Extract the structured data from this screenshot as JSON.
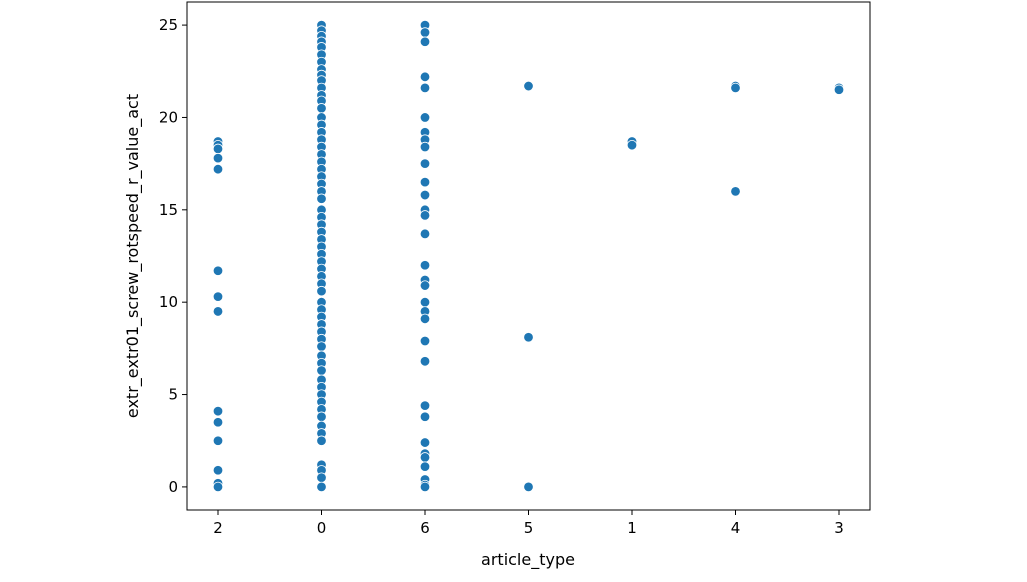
{
  "chart_data": {
    "type": "scatter",
    "title": "",
    "xlabel": "article_type",
    "ylabel": "extr_extr01_screw_rotspeed_r_value_act",
    "categories": [
      "2",
      "0",
      "6",
      "5",
      "1",
      "4",
      "3"
    ],
    "ylim": [
      -1.25,
      26.25
    ],
    "yticks": [
      0,
      5,
      10,
      15,
      20,
      25
    ],
    "grid": false,
    "legend": "none",
    "color": "#1f77b4",
    "points": [
      {
        "x": "2",
        "y": 18.7
      },
      {
        "x": "2",
        "y": 18.5
      },
      {
        "x": "2",
        "y": 18.3
      },
      {
        "x": "2",
        "y": 17.8
      },
      {
        "x": "2",
        "y": 17.2
      },
      {
        "x": "2",
        "y": 11.7
      },
      {
        "x": "2",
        "y": 10.3
      },
      {
        "x": "2",
        "y": 9.5
      },
      {
        "x": "2",
        "y": 4.1
      },
      {
        "x": "2",
        "y": 3.5
      },
      {
        "x": "2",
        "y": 2.5
      },
      {
        "x": "2",
        "y": 0.9
      },
      {
        "x": "2",
        "y": 0.2
      },
      {
        "x": "2",
        "y": 0.0
      },
      {
        "x": "0",
        "y": 25.0
      },
      {
        "x": "0",
        "y": 24.7
      },
      {
        "x": "0",
        "y": 24.4
      },
      {
        "x": "0",
        "y": 24.1
      },
      {
        "x": "0",
        "y": 23.8
      },
      {
        "x": "0",
        "y": 23.4
      },
      {
        "x": "0",
        "y": 23.0
      },
      {
        "x": "0",
        "y": 22.6
      },
      {
        "x": "0",
        "y": 22.3
      },
      {
        "x": "0",
        "y": 22.0
      },
      {
        "x": "0",
        "y": 21.6
      },
      {
        "x": "0",
        "y": 21.2
      },
      {
        "x": "0",
        "y": 20.9
      },
      {
        "x": "0",
        "y": 20.5
      },
      {
        "x": "0",
        "y": 20.0
      },
      {
        "x": "0",
        "y": 19.6
      },
      {
        "x": "0",
        "y": 19.2
      },
      {
        "x": "0",
        "y": 18.8
      },
      {
        "x": "0",
        "y": 18.4
      },
      {
        "x": "0",
        "y": 18.0
      },
      {
        "x": "0",
        "y": 17.6
      },
      {
        "x": "0",
        "y": 17.2
      },
      {
        "x": "0",
        "y": 16.8
      },
      {
        "x": "0",
        "y": 16.4
      },
      {
        "x": "0",
        "y": 16.0
      },
      {
        "x": "0",
        "y": 15.6
      },
      {
        "x": "0",
        "y": 15.0
      },
      {
        "x": "0",
        "y": 14.6
      },
      {
        "x": "0",
        "y": 14.2
      },
      {
        "x": "0",
        "y": 13.8
      },
      {
        "x": "0",
        "y": 13.4
      },
      {
        "x": "0",
        "y": 13.0
      },
      {
        "x": "0",
        "y": 12.6
      },
      {
        "x": "0",
        "y": 12.2
      },
      {
        "x": "0",
        "y": 11.8
      },
      {
        "x": "0",
        "y": 11.4
      },
      {
        "x": "0",
        "y": 11.0
      },
      {
        "x": "0",
        "y": 10.6
      },
      {
        "x": "0",
        "y": 10.0
      },
      {
        "x": "0",
        "y": 9.6
      },
      {
        "x": "0",
        "y": 9.2
      },
      {
        "x": "0",
        "y": 8.8
      },
      {
        "x": "0",
        "y": 8.4
      },
      {
        "x": "0",
        "y": 8.0
      },
      {
        "x": "0",
        "y": 7.6
      },
      {
        "x": "0",
        "y": 7.1
      },
      {
        "x": "0",
        "y": 6.7
      },
      {
        "x": "0",
        "y": 6.3
      },
      {
        "x": "0",
        "y": 5.8
      },
      {
        "x": "0",
        "y": 5.4
      },
      {
        "x": "0",
        "y": 5.0
      },
      {
        "x": "0",
        "y": 4.6
      },
      {
        "x": "0",
        "y": 4.2
      },
      {
        "x": "0",
        "y": 3.8
      },
      {
        "x": "0",
        "y": 3.3
      },
      {
        "x": "0",
        "y": 2.9
      },
      {
        "x": "0",
        "y": 2.5
      },
      {
        "x": "0",
        "y": 1.2
      },
      {
        "x": "0",
        "y": 0.9
      },
      {
        "x": "0",
        "y": 0.5
      },
      {
        "x": "0",
        "y": 0.0
      },
      {
        "x": "6",
        "y": 25.0
      },
      {
        "x": "6",
        "y": 24.6
      },
      {
        "x": "6",
        "y": 24.1
      },
      {
        "x": "6",
        "y": 22.2
      },
      {
        "x": "6",
        "y": 21.6
      },
      {
        "x": "6",
        "y": 20.0
      },
      {
        "x": "6",
        "y": 19.2
      },
      {
        "x": "6",
        "y": 18.8
      },
      {
        "x": "6",
        "y": 18.4
      },
      {
        "x": "6",
        "y": 17.5
      },
      {
        "x": "6",
        "y": 16.5
      },
      {
        "x": "6",
        "y": 15.8
      },
      {
        "x": "6",
        "y": 15.0
      },
      {
        "x": "6",
        "y": 14.7
      },
      {
        "x": "6",
        "y": 13.7
      },
      {
        "x": "6",
        "y": 12.0
      },
      {
        "x": "6",
        "y": 11.2
      },
      {
        "x": "6",
        "y": 10.9
      },
      {
        "x": "6",
        "y": 10.0
      },
      {
        "x": "6",
        "y": 9.5
      },
      {
        "x": "6",
        "y": 9.1
      },
      {
        "x": "6",
        "y": 7.9
      },
      {
        "x": "6",
        "y": 6.8
      },
      {
        "x": "6",
        "y": 4.4
      },
      {
        "x": "6",
        "y": 3.8
      },
      {
        "x": "6",
        "y": 2.4
      },
      {
        "x": "6",
        "y": 1.8
      },
      {
        "x": "6",
        "y": 1.6
      },
      {
        "x": "6",
        "y": 1.1
      },
      {
        "x": "6",
        "y": 0.4
      },
      {
        "x": "6",
        "y": 0.1
      },
      {
        "x": "6",
        "y": 0.0
      },
      {
        "x": "5",
        "y": 21.7
      },
      {
        "x": "5",
        "y": 8.1
      },
      {
        "x": "5",
        "y": 0.0
      },
      {
        "x": "1",
        "y": 18.7
      },
      {
        "x": "1",
        "y": 18.5
      },
      {
        "x": "4",
        "y": 21.7
      },
      {
        "x": "4",
        "y": 21.6
      },
      {
        "x": "4",
        "y": 16.0
      },
      {
        "x": "3",
        "y": 21.6
      },
      {
        "x": "3",
        "y": 21.5
      }
    ]
  }
}
